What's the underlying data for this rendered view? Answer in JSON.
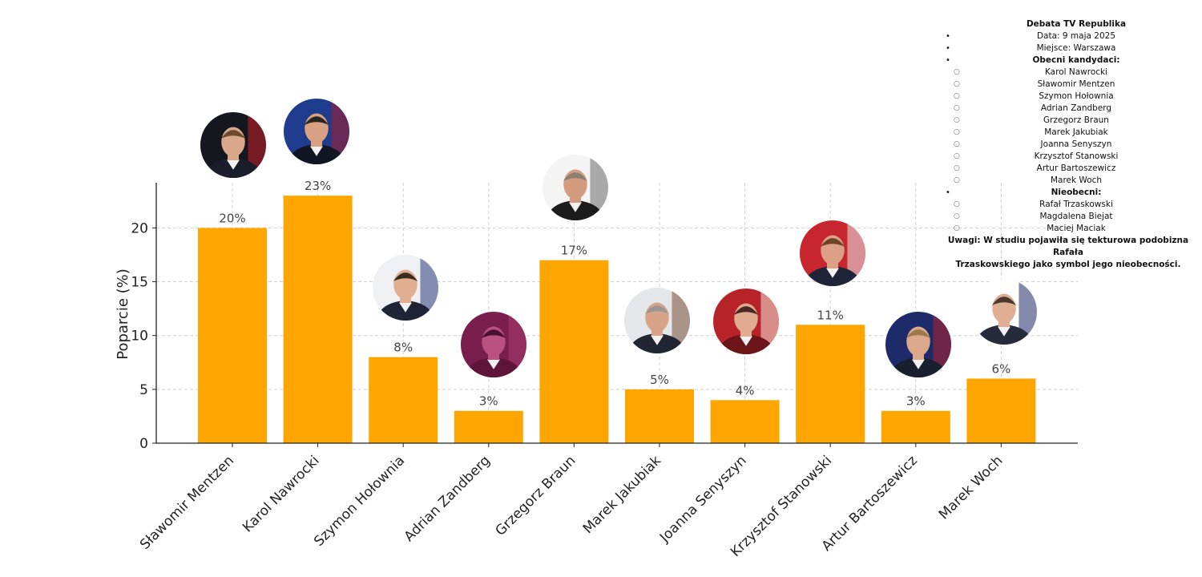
{
  "chart_data": {
    "type": "bar",
    "categories": [
      "Sławomir Mentzen",
      "Karol Nawrocki",
      "Szymon Hołownia",
      "Adrian Zandberg",
      "Grzegorz Braun",
      "Marek Jakubiak",
      "Joanna Senyszyn",
      "Krzysztof Stanowski",
      "Artur Bartoszewicz",
      "Marek Woch"
    ],
    "values": [
      20,
      23,
      8,
      3,
      17,
      5,
      4,
      11,
      3,
      6
    ],
    "value_labels": [
      "20%",
      "23%",
      "8%",
      "3%",
      "17%",
      "5%",
      "4%",
      "11%",
      "3%",
      "6%"
    ],
    "ylabel": "Poparcie (%)",
    "xlabel": "",
    "yticks": [
      "0",
      "5",
      "10",
      "15",
      "20"
    ],
    "ytick_values": [
      0,
      5,
      10,
      15,
      20
    ],
    "ylim": [
      0,
      24.2
    ],
    "grid": true,
    "bar_color": "#FFA500",
    "grid_color": "#d0d0d0",
    "axis_color": "#222222"
  },
  "info": {
    "title": "Debata TV Republika",
    "date": "Data: 9 maja 2025",
    "place": "Miejsce: Warszawa",
    "present_heading": "Obecni kandydaci:",
    "present": [
      "Karol Nawrocki",
      "Sławomir Mentzen",
      "Szymon Hołownia",
      "Adrian Zandberg",
      "Grzegorz Braun",
      "Marek Jakubiak",
      "Joanna Senyszyn",
      "Krzysztof Stanowski",
      "Artur Bartoszewicz",
      "Marek Woch"
    ],
    "absent_heading": "Nieobecni:",
    "absent": [
      "Rafał Trzaskowski",
      "Magdalena Biejat",
      "Maciej Maciak"
    ],
    "note_line1": "Uwagi: W studiu pojawiła się tekturowa podobizna Rafała",
    "note_line2": "Trzaskowskiego jako symbol jego nieobecności."
  },
  "portraits": [
    {
      "name": "Sławomir Mentzen",
      "bg": "#15171f",
      "skin": "#d9a88a",
      "hair": "#6b4a2e",
      "suit": "#1b1e2a",
      "accent": "#c9202a"
    },
    {
      "name": "Karol Nawrocki",
      "bg": "#1f3c8f",
      "skin": "#d9a184",
      "hair": "#2a2622",
      "suit": "#121522",
      "accent": "#a3192b"
    },
    {
      "name": "Szymon Hołownia",
      "bg": "#eef0f4",
      "skin": "#e2ae90",
      "hair": "#3b2c20",
      "suit": "#1f2436",
      "accent": "#2b3a7a"
    },
    {
      "name": "Adrian Zandberg",
      "bg": "#7a1f4d",
      "skin": "#b8517f",
      "hair": "#4a1230",
      "suit": "#5e1539",
      "accent": "#a83c6f"
    },
    {
      "name": "Grzegorz Braun",
      "bg": "#f4f4f4",
      "skin": "#d59b7f",
      "hair": "#8a8070",
      "suit": "#1c1c1c",
      "accent": "#6b6b6b"
    },
    {
      "name": "Marek Jakubiak",
      "bg": "#e4e6ea",
      "skin": "#d8a387",
      "hair": "#9a9696",
      "suit": "#222633",
      "accent": "#7a4f35"
    },
    {
      "name": "Joanna Senyszyn",
      "bg": "#b8232a",
      "skin": "#e0ab8e",
      "hair": "#4a2a20",
      "suit": "#6b1518",
      "accent": "#f2e6d9"
    },
    {
      "name": "Krzysztof Stanowski",
      "bg": "#c8262f",
      "skin": "#dca185",
      "hair": "#6e4428",
      "suit": "#1f2438",
      "accent": "#e8e8e8"
    },
    {
      "name": "Artur Bartoszewicz",
      "bg": "#1e2b6a",
      "skin": "#dba88b",
      "hair": "#9c7a48",
      "suit": "#1a1f30",
      "accent": "#b0202a"
    },
    {
      "name": "Marek Woch",
      "bg": "#ffffff",
      "skin": "#e0ae92",
      "hair": "#4a3a2c",
      "suit": "#262b3c",
      "accent": "#1d2a66"
    }
  ]
}
